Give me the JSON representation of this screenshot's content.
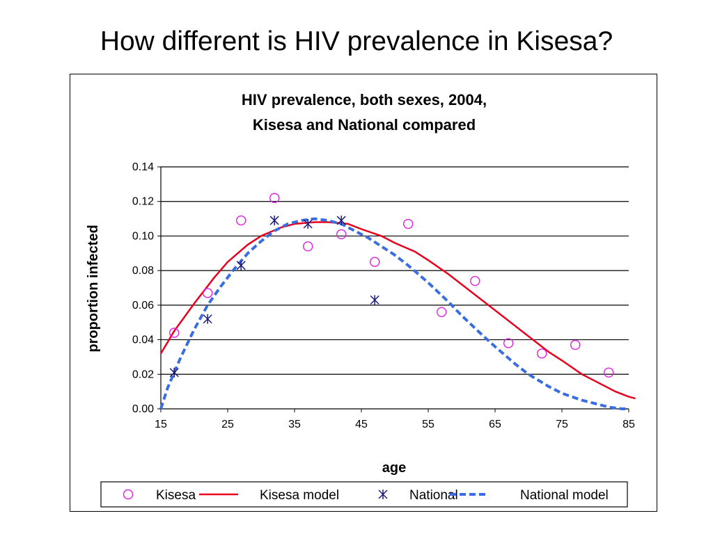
{
  "slide": {
    "title": "How different is HIV prevalence in Kisesa?"
  },
  "chart_data": {
    "type": "scatter",
    "title_line1": "HIV prevalence, both sexes, 2004,",
    "title_line2": "Kisesa and National compared",
    "xlabel": "age",
    "ylabel": "proportion infected",
    "xlim": [
      15,
      85
    ],
    "ylim": [
      0,
      0.14
    ],
    "x_ticks": [
      "15",
      "25",
      "35",
      "45",
      "55",
      "65",
      "75",
      "85"
    ],
    "y_ticks": [
      "0.00",
      "0.02",
      "0.04",
      "0.06",
      "0.08",
      "0.10",
      "0.12",
      "0.14"
    ],
    "grid": "horizontal",
    "legend_position": "bottom",
    "series": [
      {
        "name": "Kisesa",
        "kind": "points",
        "marker": "circle",
        "color": "#e020e0",
        "x": [
          17,
          22,
          27,
          32,
          37,
          42,
          47,
          52,
          57,
          62,
          67,
          72,
          77,
          82
        ],
        "y": [
          0.044,
          0.067,
          0.109,
          0.122,
          0.094,
          0.101,
          0.085,
          0.107,
          0.056,
          0.074,
          0.038,
          0.032,
          0.037,
          0.021
        ]
      },
      {
        "name": "Kisesa model",
        "kind": "line",
        "color": "#e8001c",
        "x": [
          15,
          17,
          20,
          23,
          25,
          28,
          30,
          33,
          35,
          38,
          40,
          43,
          45,
          48,
          50,
          53,
          55,
          58,
          60,
          63,
          65,
          68,
          70,
          73,
          75,
          78,
          80,
          83,
          85,
          86
        ],
        "y": [
          0.032,
          0.045,
          0.061,
          0.076,
          0.085,
          0.095,
          0.1,
          0.105,
          0.107,
          0.108,
          0.108,
          0.107,
          0.104,
          0.1,
          0.096,
          0.091,
          0.086,
          0.078,
          0.072,
          0.063,
          0.057,
          0.048,
          0.042,
          0.033,
          0.028,
          0.02,
          0.016,
          0.01,
          0.007,
          0.006
        ]
      },
      {
        "name": "National",
        "kind": "points",
        "marker": "asterisk",
        "color": "#1a1a7a",
        "x": [
          17,
          22,
          27,
          32,
          37,
          42,
          47
        ],
        "y": [
          0.021,
          0.052,
          0.083,
          0.109,
          0.107,
          0.109,
          0.063
        ]
      },
      {
        "name": "National model",
        "kind": "line",
        "dash": true,
        "color": "#3a6ee0",
        "x": [
          15,
          16,
          18,
          20,
          22,
          24,
          26,
          28,
          30,
          32,
          34,
          36,
          38,
          40,
          42,
          44,
          46,
          48,
          50,
          52,
          55,
          58,
          60,
          63,
          65,
          68,
          70,
          73,
          75,
          78,
          80,
          82,
          84,
          85
        ],
        "y": [
          0.0,
          0.012,
          0.03,
          0.046,
          0.06,
          0.071,
          0.081,
          0.09,
          0.097,
          0.103,
          0.107,
          0.109,
          0.11,
          0.109,
          0.107,
          0.103,
          0.099,
          0.094,
          0.089,
          0.083,
          0.073,
          0.062,
          0.054,
          0.043,
          0.036,
          0.026,
          0.02,
          0.013,
          0.009,
          0.005,
          0.003,
          0.001,
          0.0,
          0.0
        ]
      }
    ]
  }
}
